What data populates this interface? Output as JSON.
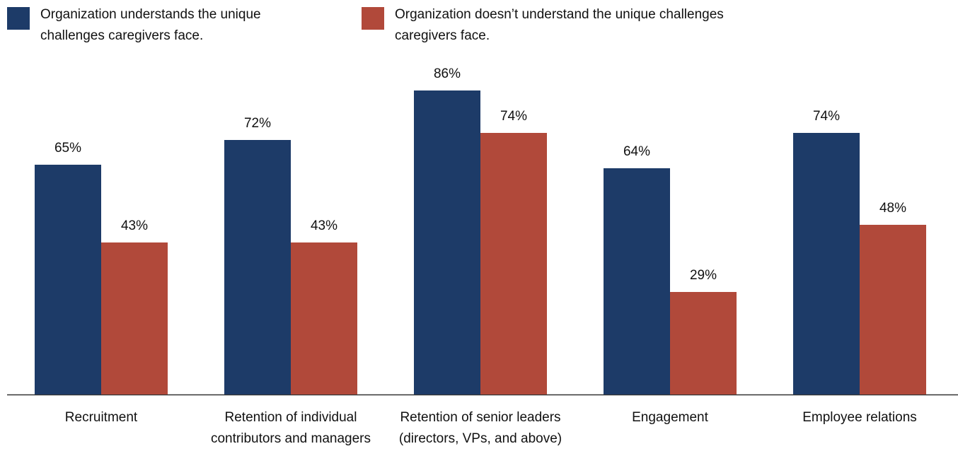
{
  "chart_data": {
    "type": "bar",
    "categories": [
      "Recruitment",
      "Retention of individual contributors and managers",
      "Retention of senior leaders (directors, VPs, and above)",
      "Engagement",
      "Employee relations"
    ],
    "series": [
      {
        "name": "Organization understands the unique challenges caregivers face.",
        "color": "#1d3b68",
        "values": [
          65,
          72,
          86,
          64,
          74
        ],
        "value_labels": [
          "65%",
          "72%",
          "86%",
          "64%",
          "74%"
        ]
      },
      {
        "name": "Organization doesn’t understand the unique challenges caregivers face.",
        "color": "#b1493a",
        "values": [
          43,
          43,
          74,
          29,
          48
        ],
        "value_labels": [
          "43%",
          "43%",
          "74%",
          "29%",
          "48%"
        ]
      }
    ]
  }
}
